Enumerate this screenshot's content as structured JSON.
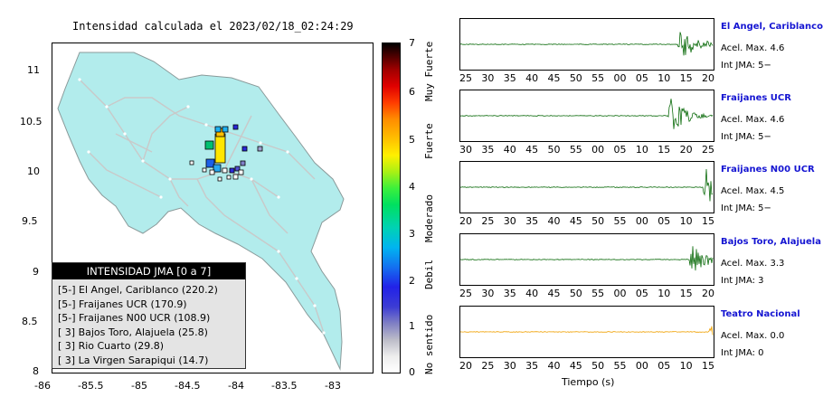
{
  "map": {
    "title": "Intensidad calculada el 2023/02/18_02:24:29",
    "lat_ticks": [
      "11",
      "10.5",
      "10",
      "9.5",
      "9",
      "8.5",
      "8"
    ],
    "lon_ticks": [
      "-86",
      "-85.5",
      "-85",
      "-84.5",
      "-84",
      "-83.5",
      "-83"
    ],
    "land_color": "#b2ecec",
    "legend": {
      "title": "INTENSIDAD JMA [0 a 7]",
      "items": [
        "[5-] El Angel, Cariblanco (220.2)",
        "[5-] Fraijanes UCR (170.9)",
        "[5-] Fraijanes N00 UCR (108.9)",
        "[ 3] Bajos Toro, Alajuela (25.8)",
        "[ 3] Rio Cuarto (29.8)",
        "[ 3] La Virgen Sarapiqui (14.7)"
      ]
    }
  },
  "colorbar": {
    "ticks": [
      "7",
      "6",
      "5",
      "4",
      "3",
      "2",
      "1",
      "0"
    ],
    "labels": [
      "Muy Fuerte",
      "Fuerte",
      "Moderado",
      "Debil",
      "No sentido"
    ]
  },
  "waveforms": {
    "xlabel": "Tiempo (s)",
    "panels": [
      {
        "station": "El Angel, Cariblanco",
        "acel": "Acel. Max. 4.6",
        "int": "Int JMA: 5−",
        "ticks": [
          "25",
          "30",
          "35",
          "40",
          "45",
          "50",
          "55",
          "00",
          "05",
          "10",
          "15",
          "20"
        ],
        "color": "#0b6b0b"
      },
      {
        "station": "Fraijanes UCR",
        "acel": "Acel. Max. 4.6",
        "int": "Int JMA: 5−",
        "ticks": [
          "30",
          "35",
          "40",
          "45",
          "50",
          "55",
          "00",
          "05",
          "10",
          "15",
          "20",
          "25"
        ],
        "color": "#0b6b0b"
      },
      {
        "station": "Fraijanes N00 UCR",
        "acel": "Acel. Max. 4.5",
        "int": "Int JMA: 5−",
        "ticks": [
          "20",
          "25",
          "30",
          "35",
          "40",
          "45",
          "50",
          "55",
          "00",
          "05",
          "10",
          "15"
        ],
        "color": "#0b6b0b"
      },
      {
        "station": "Bajos Toro, Alajuela",
        "acel": "Acel. Max. 3.3",
        "int": "Int JMA: 3",
        "ticks": [
          "25",
          "30",
          "35",
          "40",
          "45",
          "50",
          "55",
          "00",
          "05",
          "10",
          "15",
          "20"
        ],
        "color": "#0b6b0b"
      },
      {
        "station": "Teatro Nacional",
        "acel": "Acel. Max. 0.0",
        "int": "Int JMA: 0",
        "ticks": [
          "20",
          "25",
          "30",
          "35",
          "40",
          "45",
          "50",
          "55",
          "00",
          "05",
          "10",
          "15"
        ],
        "color": "#f0a000"
      }
    ]
  }
}
